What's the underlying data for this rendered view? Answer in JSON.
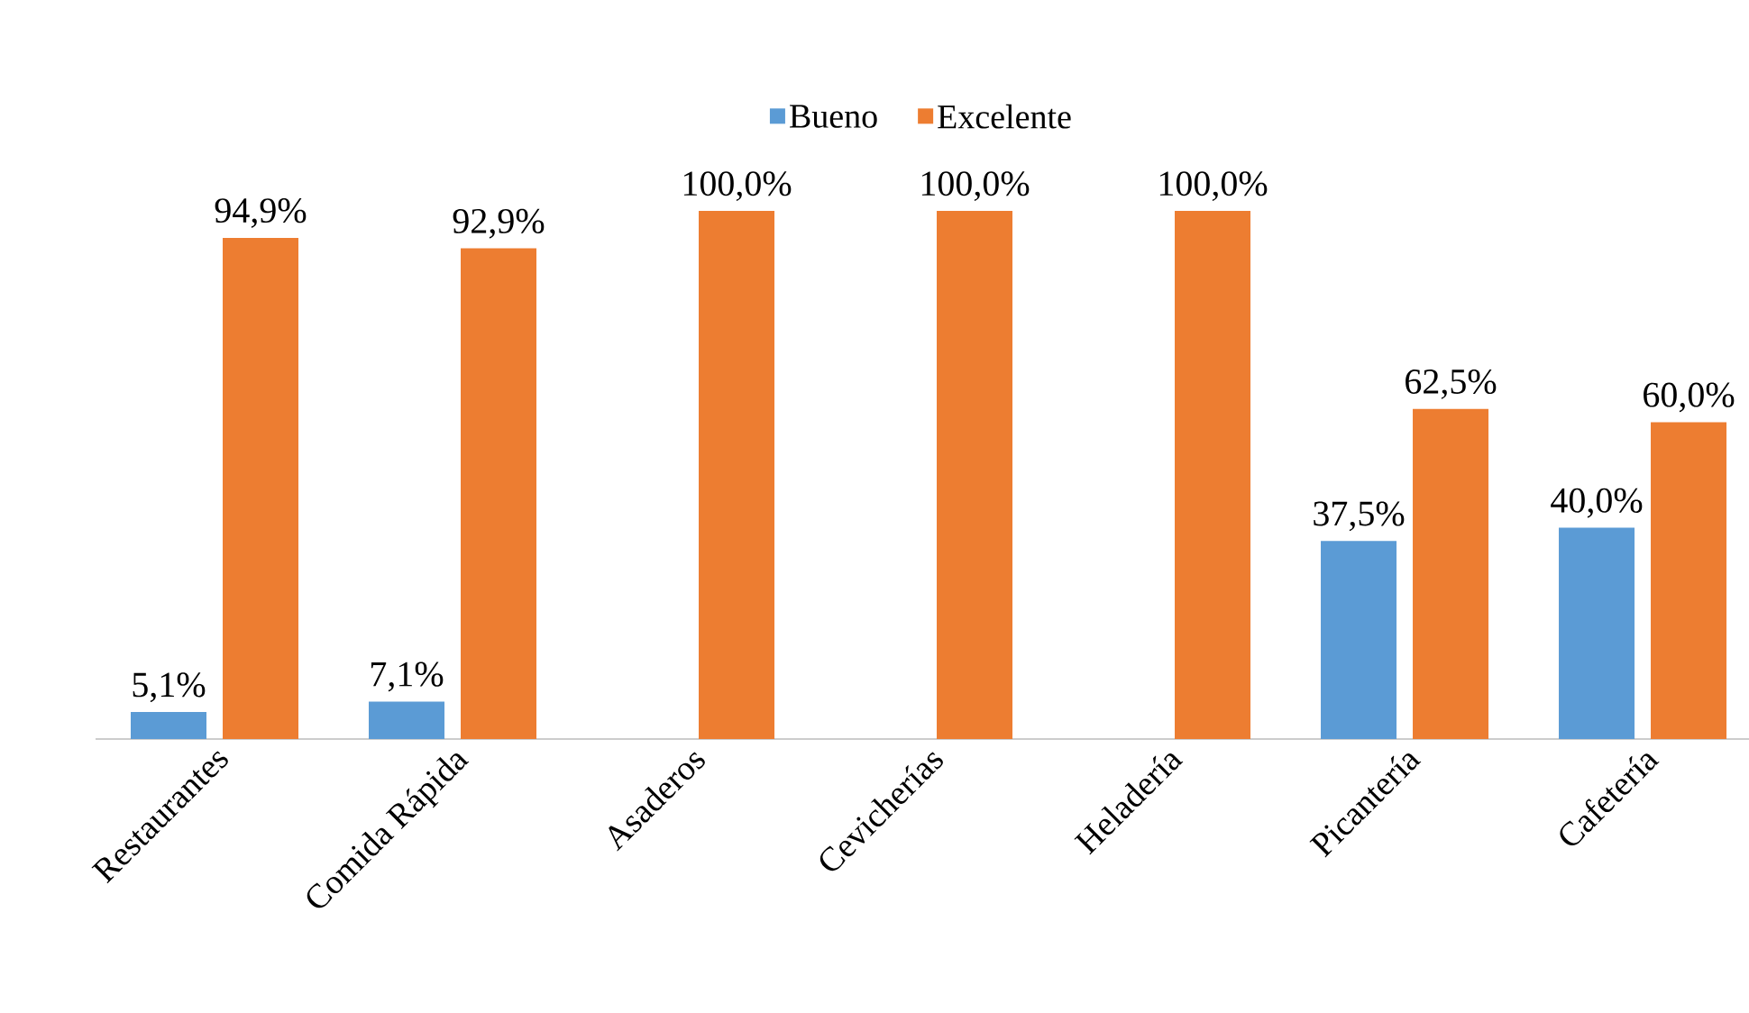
{
  "chart_data": {
    "type": "bar",
    "categories": [
      "Restaurantes",
      "Comida Rápida",
      "Asaderos",
      "Cevicherías",
      "Heladería",
      "Picantería",
      "Cafetería"
    ],
    "series": [
      {
        "name": "Bueno",
        "color": "#5b9bd5",
        "values": [
          5.1,
          7.1,
          null,
          null,
          null,
          37.5,
          40.0
        ],
        "value_labels": [
          "5,1%",
          "7,1%",
          null,
          null,
          null,
          "37,5%",
          "40,0%"
        ]
      },
      {
        "name": "Excelente",
        "color": "#ed7d31",
        "values": [
          94.9,
          92.9,
          100.0,
          100.0,
          100.0,
          62.5,
          60.0
        ],
        "value_labels": [
          "94,9%",
          "92,9%",
          "100,0%",
          "100,0%",
          "100,0%",
          "62,5%",
          "60,0%"
        ]
      }
    ],
    "legend": "top",
    "grid": false
  }
}
